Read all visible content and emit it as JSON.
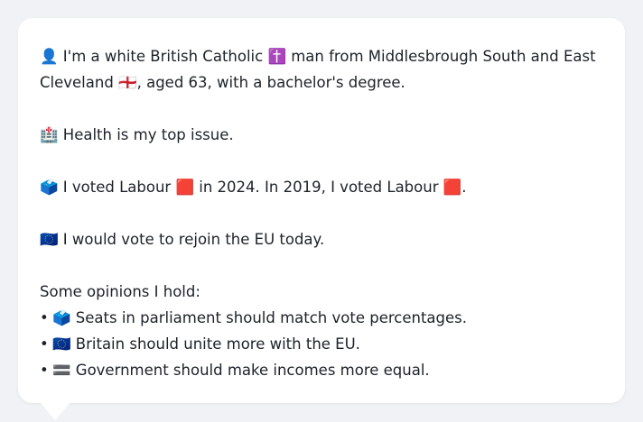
{
  "profile": {
    "intro_icon": "person-emoji",
    "intro_line1": "👤 I'm a white British Catholic ✝️ man from Middlesbrough South and East",
    "intro_line2": "Cleveland 🏴󠁧󠁢󠁥󠁮󠁧󠁿, aged 63, with a bachelor's degree.",
    "issue": "🏥 Health is my top issue.",
    "vote": "🗳️ I voted Labour 🟥 in 2024. In 2019, I voted Labour 🟥.",
    "eu": "🇪🇺 I would vote to rejoin the EU today.",
    "opinions_heading": "Some opinions I hold:",
    "opinions": [
      {
        "bullet": "•",
        "text": "🗳️ Seats in parliament should match vote percentages."
      },
      {
        "bullet": "•",
        "text": "🇪🇺 Britain should unite more with the EU."
      },
      {
        "bullet": "•",
        "text": "🟰 Government should make incomes more equal."
      }
    ]
  },
  "colors": {
    "bubble_bg": "#ffffff",
    "page_bg": "#f1f2f5",
    "text": "#1d2129"
  }
}
